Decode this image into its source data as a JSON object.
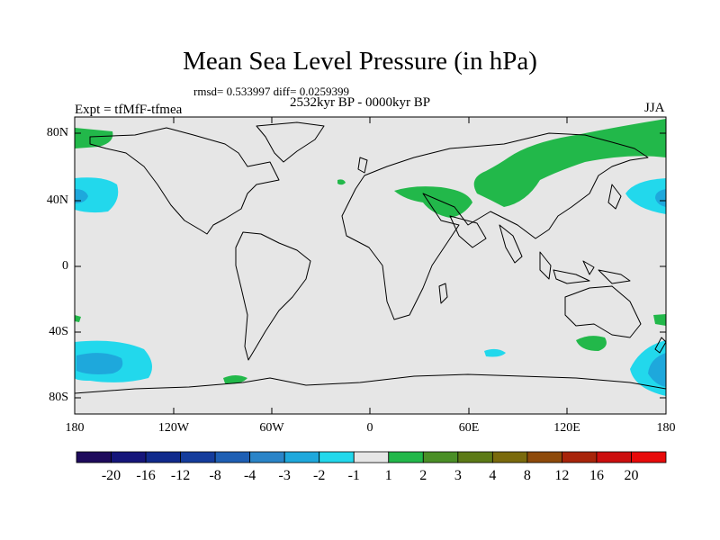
{
  "title": "Mean Sea Level Pressure (in hPa)",
  "stats_text": "rmsd= 0.533997 diff= 0.0259399",
  "period_text": "2532kyr BP - 0000kyr BP",
  "expt_text": "Expt = tfMfF-tfmea",
  "season_text": "JJA",
  "map": {
    "projection": "cylindrical equidistant",
    "background_color": "#e6e6e6",
    "lat_labels": [
      "80N",
      "40N",
      "0",
      "40S",
      "80S"
    ],
    "lon_labels": [
      "180",
      "120W",
      "60W",
      "0",
      "60E",
      "120E",
      "180"
    ]
  },
  "colorbar": {
    "labels": [
      "-20",
      "-16",
      "-12",
      "-8",
      "-4",
      "-3",
      "-2",
      "-1",
      "1",
      "2",
      "3",
      "4",
      "8",
      "12",
      "16",
      "20"
    ],
    "colors": [
      "#1e0a5c",
      "#15157a",
      "#102a8c",
      "#143c9c",
      "#1e5fb4",
      "#2a84c8",
      "#1ea8dc",
      "#22d8ec",
      "#e6e6e6",
      "#22b84a",
      "#4a8f26",
      "#5c7a16",
      "#7a6a0c",
      "#8e4a0a",
      "#a8240a",
      "#cc0e0e",
      "#e80a0a"
    ]
  },
  "anomaly_regions": [
    {
      "name": "north-atlantic-arctic-positive",
      "sign": "positive",
      "level": "1 to 2"
    },
    {
      "name": "eurasia-positive",
      "sign": "positive",
      "level": "1 to 2"
    },
    {
      "name": "caspian-positive",
      "sign": "positive",
      "level": "1 to 2"
    },
    {
      "name": "north-pacific-west-negative",
      "sign": "negative",
      "level": "-1 to -3"
    },
    {
      "name": "north-pacific-east-negative",
      "sign": "negative",
      "level": "-1 to -3"
    },
    {
      "name": "south-pacific-negative",
      "sign": "negative",
      "level": "-1 to -3"
    },
    {
      "name": "southern-ocean-east-negative",
      "sign": "negative",
      "level": "-1 to -3"
    },
    {
      "name": "south-indian-positive",
      "sign": "positive",
      "level": "1 to 2"
    },
    {
      "name": "south-atlantic-positive",
      "sign": "positive",
      "level": "1 to 2"
    }
  ]
}
